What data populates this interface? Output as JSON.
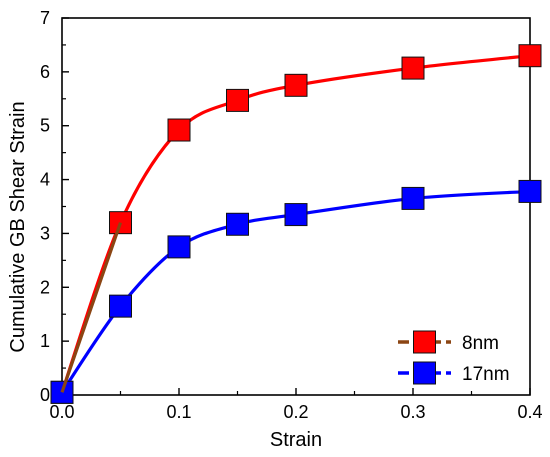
{
  "chart_data": {
    "type": "line",
    "xlabel": "Strain",
    "ylabel": "Cumulative GB Shear Strain",
    "xlim": [
      0.0,
      0.4
    ],
    "ylim": [
      0,
      7
    ],
    "x_ticks": [
      0.0,
      0.1,
      0.2,
      0.3,
      0.4
    ],
    "x_tick_labels": [
      "0.0",
      "0.1",
      "0.2",
      "0.3",
      "0.4"
    ],
    "y_ticks": [
      0,
      1,
      2,
      3,
      4,
      5,
      6,
      7
    ],
    "y_tick_labels": [
      "0",
      "1",
      "2",
      "3",
      "4",
      "5",
      "6",
      "7"
    ],
    "legend_position": "bottom-right",
    "grid": false,
    "series": [
      {
        "name": "8nm",
        "color": "#ff0000",
        "marker_color": "#ff0000",
        "legend_line_color": "#8b4513",
        "x": [
          0.0,
          0.05,
          0.1,
          0.15,
          0.2,
          0.3,
          0.4
        ],
        "y": [
          0.05,
          3.2,
          4.92,
          5.47,
          5.75,
          6.07,
          6.3
        ]
      },
      {
        "name": "17nm",
        "color": "#0000ff",
        "marker_color": "#0000ff",
        "legend_line_color": "#0000ff",
        "x": [
          0.0,
          0.05,
          0.1,
          0.15,
          0.2,
          0.3,
          0.4
        ],
        "y": [
          0.05,
          1.65,
          2.75,
          3.17,
          3.35,
          3.65,
          3.78
        ]
      }
    ],
    "extra_segment": {
      "color": "#8b4513",
      "x": [
        0.0,
        0.05
      ],
      "y": [
        0.05,
        3.2
      ]
    }
  }
}
